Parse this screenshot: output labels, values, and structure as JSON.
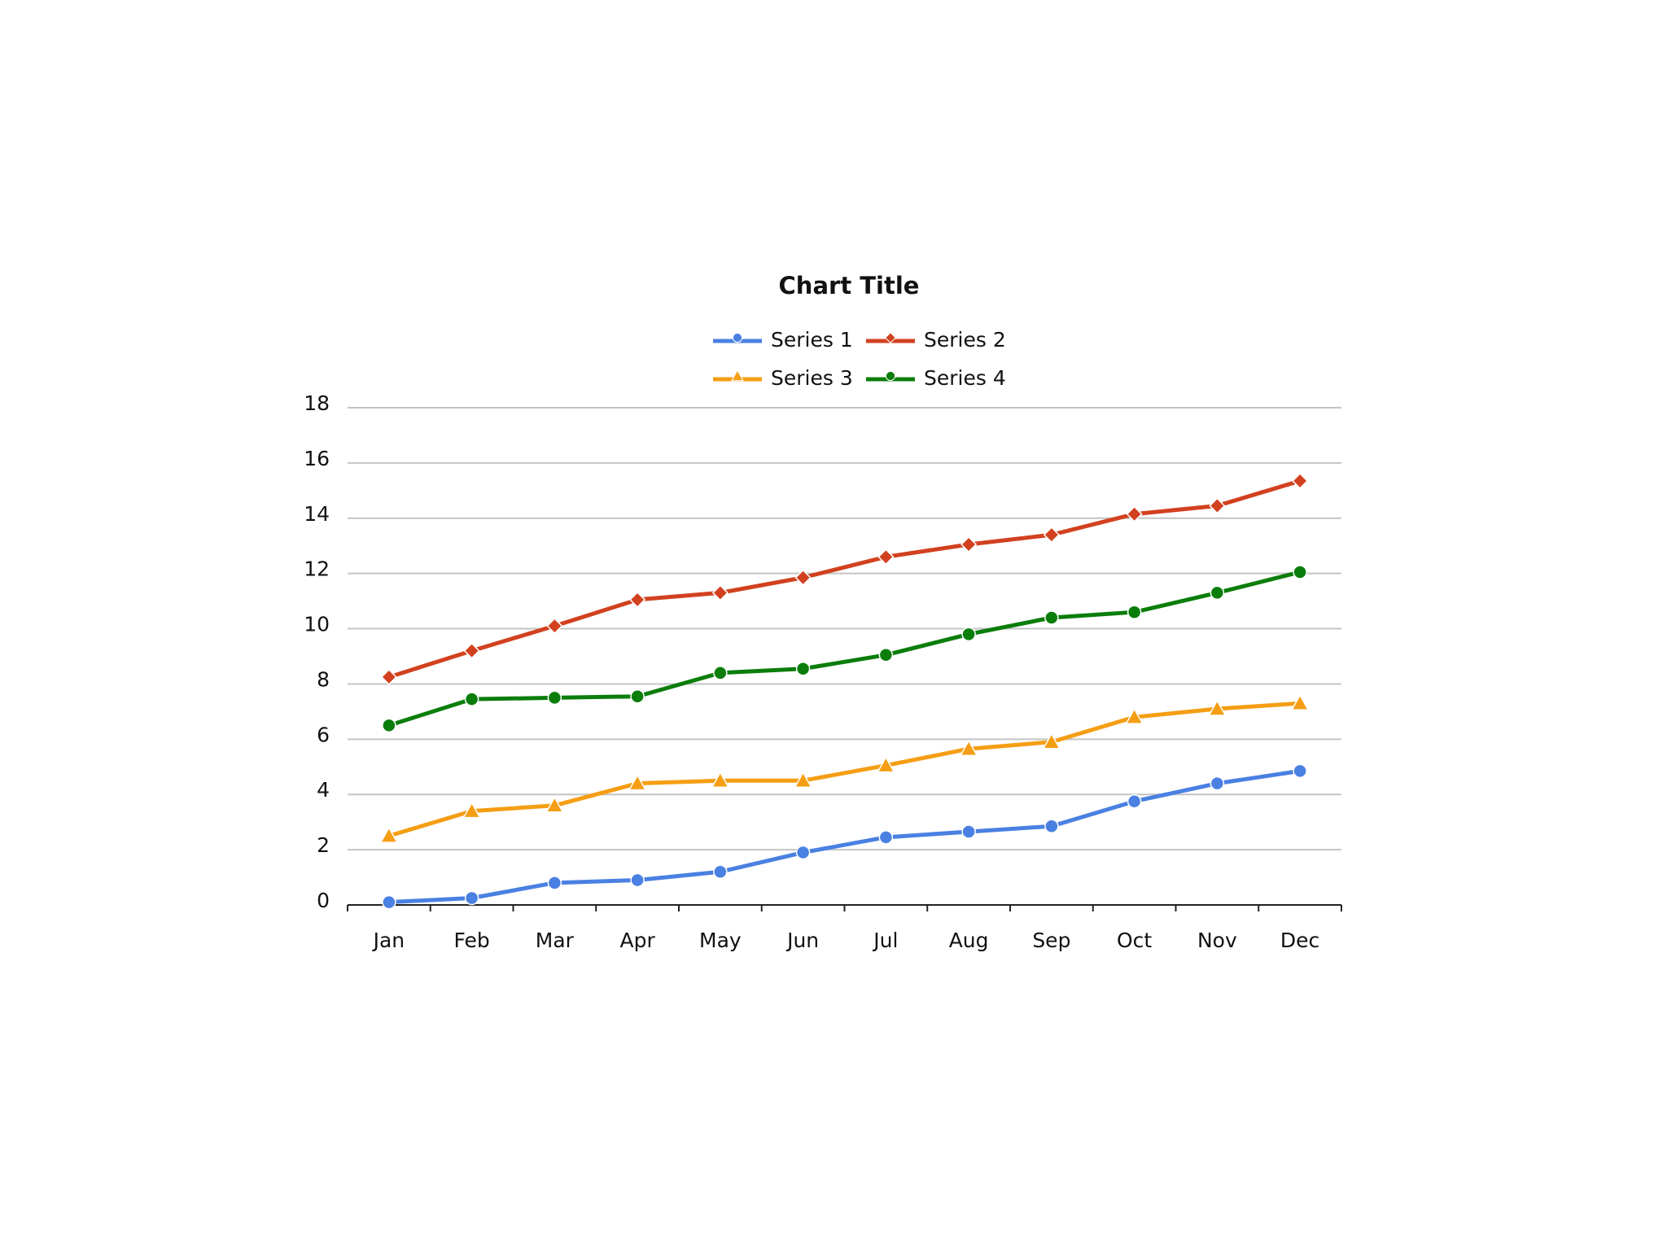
{
  "chart_data": {
    "type": "line",
    "title": "Chart Title",
    "categories": [
      "Jan",
      "Feb",
      "Mar",
      "Apr",
      "May",
      "Jun",
      "Jul",
      "Aug",
      "Sep",
      "Oct",
      "Nov",
      "Dec"
    ],
    "series": [
      {
        "name": "Series 1",
        "color": "#4a80e2",
        "marker": "circle",
        "values": [
          0.1,
          0.25,
          0.8,
          0.9,
          1.2,
          1.9,
          2.45,
          2.65,
          2.85,
          3.75,
          4.4,
          4.85
        ]
      },
      {
        "name": "Series 2",
        "color": "#d2411f",
        "marker": "diamond",
        "values": [
          8.25,
          9.2,
          10.1,
          11.05,
          11.3,
          11.85,
          12.6,
          13.05,
          13.4,
          14.15,
          14.45,
          15.35
        ]
      },
      {
        "name": "Series 3",
        "color": "#f59e14",
        "marker": "triangle",
        "values": [
          2.5,
          3.4,
          3.6,
          4.4,
          4.5,
          4.5,
          5.05,
          5.65,
          5.9,
          6.8,
          7.1,
          7.3
        ]
      },
      {
        "name": "Series 4",
        "color": "#0b7d0b",
        "marker": "circle",
        "values": [
          6.5,
          7.45,
          7.5,
          7.55,
          8.4,
          8.55,
          9.05,
          9.8,
          10.4,
          10.6,
          11.3,
          12.05
        ]
      }
    ],
    "ylim": [
      0,
      18
    ],
    "yticks": [
      0,
      2,
      4,
      6,
      8,
      10,
      12,
      14,
      16,
      18
    ],
    "grid": true,
    "legend": "top"
  }
}
